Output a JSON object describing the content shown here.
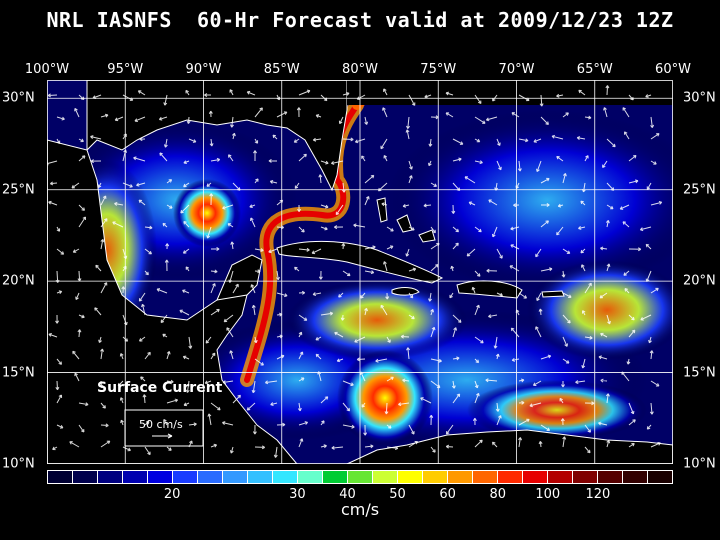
{
  "title": "NRL IASNFS  60-Hr Forecast valid at 2009/12/23 12Z",
  "lon_labels": [
    "100°W",
    "95°W",
    "90°W",
    "85°W",
    "80°W",
    "75°W",
    "70°W",
    "65°W",
    "60°W"
  ],
  "lat_labels": [
    "30°N",
    "25°N",
    "20°N",
    "15°N",
    "10°N"
  ],
  "map": {
    "lon_range": [
      -100,
      -60
    ],
    "lat_range": [
      10,
      31
    ],
    "grid_lons": [
      -95,
      -90,
      -85,
      -80,
      -75,
      -70,
      -65
    ],
    "grid_lats": [
      30,
      25,
      20,
      15
    ]
  },
  "legend": {
    "label": "Surface Current",
    "reference_vector": "50 cm/s"
  },
  "colorbar": {
    "unit": "cm/s",
    "ticks": [
      {
        "label": "20",
        "index": 5
      },
      {
        "label": "30",
        "index": 10
      },
      {
        "label": "40",
        "index": 12
      },
      {
        "label": "50",
        "index": 14
      },
      {
        "label": "60",
        "index": 16
      },
      {
        "label": "80",
        "index": 18
      },
      {
        "label": "100",
        "index": 20
      },
      {
        "label": "120",
        "index": 22
      }
    ],
    "colors": [
      "#000033",
      "#00004d",
      "#000080",
      "#0000b0",
      "#0000e0",
      "#1a3cff",
      "#2a6cff",
      "#3399ff",
      "#33c0ff",
      "#33e6ff",
      "#66ffcc",
      "#00cc33",
      "#66e633",
      "#ccff33",
      "#ffff00",
      "#ffcc00",
      "#ff9900",
      "#ff6600",
      "#ff2a00",
      "#e60000",
      "#b30000",
      "#800000",
      "#550000",
      "#330000",
      "#1a0000"
    ]
  }
}
